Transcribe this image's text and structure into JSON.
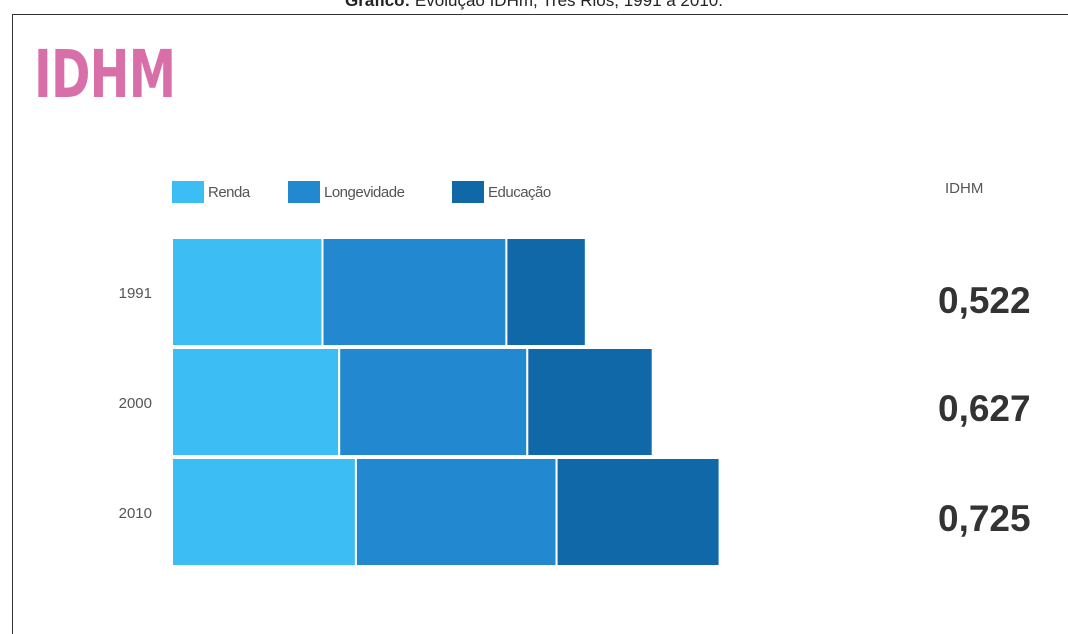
{
  "caption": {
    "prefix": "Gráfico:",
    "text": " Evolução IDHm, Três Rios, 1991 a 2010."
  },
  "logo_text": "IDHM",
  "colors": {
    "renda": "#3cbdf4",
    "longevidade": "#2288d0",
    "educacao": "#1068a8",
    "logo": "#d96fa8"
  },
  "chart_data": {
    "type": "bar",
    "stacked": true,
    "orientation": "horizontal",
    "categories": [
      "1991",
      "2000",
      "2010"
    ],
    "series": [
      {
        "name": "Renda",
        "values": [
          0.36,
          0.4,
          0.44
        ]
      },
      {
        "name": "Longevidade",
        "values": [
          0.44,
          0.45,
          0.48
        ]
      },
      {
        "name": "Educação",
        "values": [
          0.19,
          0.3,
          0.39
        ]
      }
    ],
    "idhm_header": "IDHM",
    "idhm_values": [
      "0,522",
      "0,627",
      "0,725"
    ],
    "xlabel": "",
    "ylabel": "",
    "grid": false,
    "legend": "top-left"
  }
}
